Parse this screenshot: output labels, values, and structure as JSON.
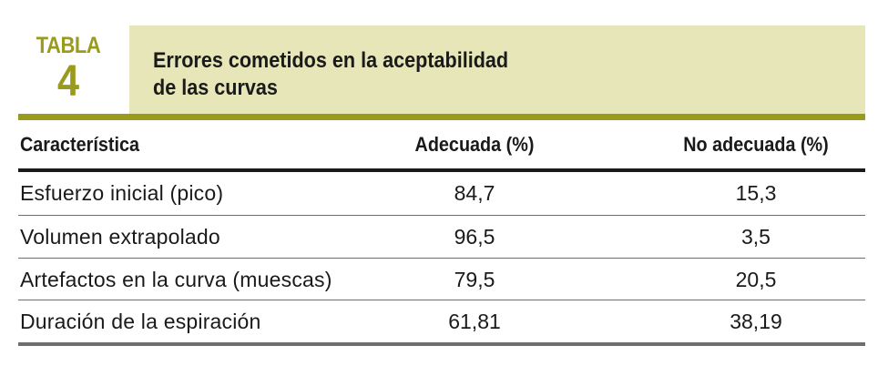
{
  "table": {
    "label_word": "TABLA",
    "label_number": "4",
    "title_line1": "Errores cometidos en la aceptabilidad",
    "title_line2": "de las curvas",
    "columns": [
      "Característica",
      "Adecuada (%)",
      "No adecuada (%)"
    ],
    "rows": [
      {
        "caracteristica": "Esfuerzo inicial (pico)",
        "adecuada": "84,7",
        "no_adecuada": "15,3"
      },
      {
        "caracteristica": "Volumen extrapolado",
        "adecuada": "96,5",
        "no_adecuada": "3,5"
      },
      {
        "caracteristica": "Artefactos en la curva (muescas)",
        "adecuada": "79,5",
        "no_adecuada": "20,5"
      },
      {
        "caracteristica": "Duración de la espiración",
        "adecuada": "61,81",
        "no_adecuada": "38,19"
      }
    ],
    "colors": {
      "olive": "#9a9a1c",
      "title_background": "#e7e6b8",
      "rule_dark": "#1a1a1a",
      "rule_gray": "#6e6e6e"
    }
  }
}
